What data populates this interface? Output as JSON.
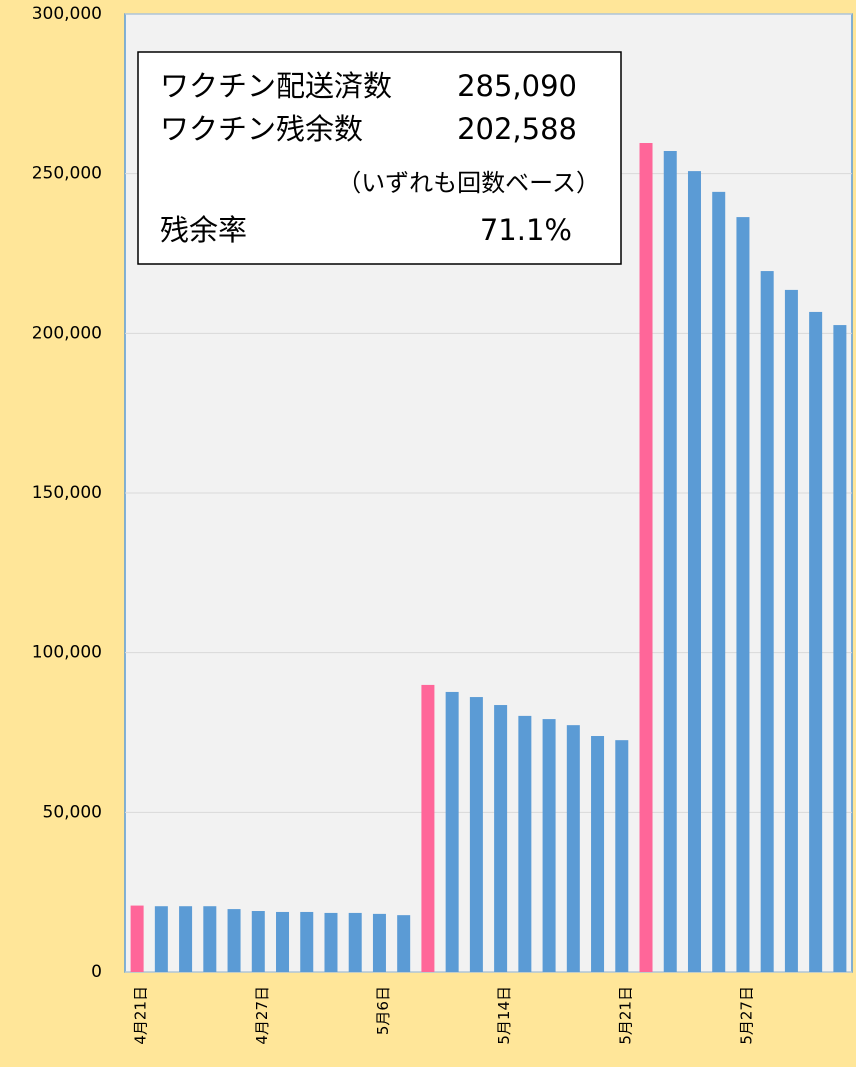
{
  "chart_data": {
    "type": "bar",
    "categories": [
      "4月21日",
      null,
      null,
      null,
      null,
      "4月27日",
      null,
      null,
      null,
      null,
      "5月6日",
      null,
      null,
      null,
      null,
      "5月14日",
      null,
      null,
      null,
      null,
      "5月21日",
      null,
      null,
      null,
      null,
      "5月27日",
      null,
      null,
      null,
      null
    ],
    "values": [
      20800,
      20600,
      20600,
      20600,
      19700,
      19100,
      18800,
      18800,
      18500,
      18500,
      18200,
      17800,
      89900,
      87700,
      86100,
      83600,
      80200,
      79200,
      77300,
      73900,
      72600,
      259600,
      257100,
      250800,
      244300,
      236400,
      219500,
      213600,
      206700,
      202588
    ],
    "colors": [
      "#ff6699",
      "#5b9bd5",
      "#5b9bd5",
      "#5b9bd5",
      "#5b9bd5",
      "#5b9bd5",
      "#5b9bd5",
      "#5b9bd5",
      "#5b9bd5",
      "#5b9bd5",
      "#5b9bd5",
      "#5b9bd5",
      "#ff6699",
      "#5b9bd5",
      "#5b9bd5",
      "#5b9bd5",
      "#5b9bd5",
      "#5b9bd5",
      "#5b9bd5",
      "#5b9bd5",
      "#5b9bd5",
      "#ff6699",
      "#5b9bd5",
      "#5b9bd5",
      "#5b9bd5",
      "#5b9bd5",
      "#5b9bd5",
      "#5b9bd5",
      "#5b9bd5",
      "#5b9bd5"
    ],
    "ylim": [
      0,
      300000
    ],
    "yticks": [
      {
        "value": 0,
        "label": "0"
      },
      {
        "value": 50000,
        "label": "50,000"
      },
      {
        "value": 100000,
        "label": "100,000"
      },
      {
        "value": 150000,
        "label": "150,000"
      },
      {
        "value": 200000,
        "label": "200,000"
      },
      {
        "value": 250000,
        "label": "250,000"
      },
      {
        "value": 300000,
        "label": "300,000"
      }
    ],
    "grid": true,
    "annotation": {
      "delivered_label": "ワクチン配送済数",
      "delivered_value": "285,090",
      "remaining_label": "ワクチン残余数",
      "remaining_value": "202,588",
      "note": "（いずれも回数ベース）",
      "rate_label": "残余率",
      "rate_value": "71.1%"
    }
  }
}
